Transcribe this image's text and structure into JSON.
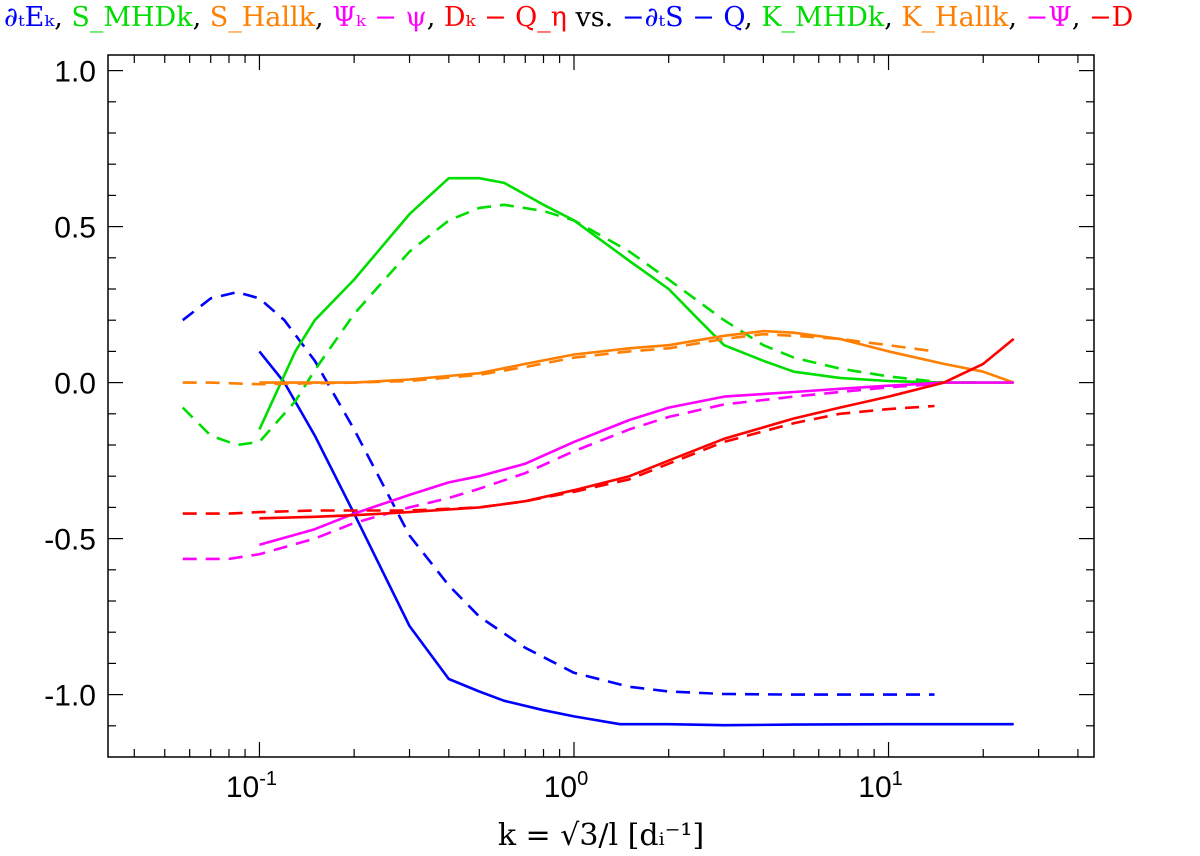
{
  "chart_data": {
    "type": "line",
    "title_segments": [
      {
        "text": "∂ₜEₖ",
        "color": "#0000ff"
      },
      {
        "text": ", ",
        "color": "#000000"
      },
      {
        "text": "S_MHDk",
        "color": "#00dd00"
      },
      {
        "text": ", ",
        "color": "#000000"
      },
      {
        "text": "S_Hallk",
        "color": "#ff7f00"
      },
      {
        "text": ", ",
        "color": "#000000"
      },
      {
        "text": "Ψₖ − ψ",
        "color": "#ff00ff"
      },
      {
        "text": ", ",
        "color": "#000000"
      },
      {
        "text": "Dₖ − Q_η",
        "color": "#ff0000"
      },
      {
        "text": " vs. ",
        "color": "#000000"
      },
      {
        "text": "−∂ₜS − Q",
        "color": "#0000ff"
      },
      {
        "text": ", ",
        "color": "#000000"
      },
      {
        "text": "K_MHDk",
        "color": "#00dd00"
      },
      {
        "text": ", ",
        "color": "#000000"
      },
      {
        "text": "K_Hallk",
        "color": "#ff7f00"
      },
      {
        "text": ", ",
        "color": "#000000"
      },
      {
        "text": "−Ψ",
        "color": "#ff00ff"
      },
      {
        "text": ", ",
        "color": "#000000"
      },
      {
        "text": "−D",
        "color": "#ff0000"
      }
    ],
    "xlabel": "k = √3/l [dᵢ⁻¹]",
    "xscale": "log",
    "xlim": [
      0.033,
      45
    ],
    "ylim": [
      -1.2,
      1.05
    ],
    "yticks": [
      1.0,
      0.5,
      0.0,
      -0.5,
      -1.0
    ],
    "ytick_labels": [
      "1.0",
      "0.5",
      "0.0",
      "-0.5",
      "-1.0"
    ],
    "xticks": [
      0.1,
      1,
      10
    ],
    "xtick_labels": [
      {
        "base": "10",
        "exp": "-1"
      },
      {
        "base": "10",
        "exp": "0"
      },
      {
        "base": "10",
        "exp": "1"
      }
    ],
    "series": [
      {
        "name": "∂tEk",
        "color": "#0000ff",
        "style": "solid",
        "x": [
          0.1,
          0.12,
          0.15,
          0.2,
          0.3,
          0.4,
          0.5,
          0.6,
          0.8,
          1.0,
          1.4,
          2,
          3,
          5,
          10,
          25
        ],
        "y": [
          0.1,
          0.0,
          -0.17,
          -0.42,
          -0.78,
          -0.95,
          -0.99,
          -1.02,
          -1.05,
          -1.07,
          -1.095,
          -1.095,
          -1.098,
          -1.096,
          -1.095,
          -1.095
        ]
      },
      {
        "name": "-∂tS - Q",
        "color": "#0000ff",
        "style": "dashed",
        "x": [
          0.057,
          0.07,
          0.085,
          0.1,
          0.12,
          0.15,
          0.2,
          0.3,
          0.4,
          0.5,
          0.7,
          1.0,
          1.5,
          2,
          3,
          5,
          10,
          14
        ],
        "y": [
          0.2,
          0.27,
          0.29,
          0.27,
          0.2,
          0.07,
          -0.15,
          -0.49,
          -0.65,
          -0.75,
          -0.85,
          -0.93,
          -0.975,
          -0.99,
          -0.998,
          -1.0,
          -1.0,
          -1.0
        ]
      },
      {
        "name": "S_MHDk",
        "color": "#00dd00",
        "style": "solid",
        "x": [
          0.1,
          0.13,
          0.15,
          0.2,
          0.3,
          0.4,
          0.5,
          0.6,
          0.8,
          1.0,
          1.5,
          2,
          2.5,
          3,
          4,
          5,
          7,
          10,
          15,
          25
        ],
        "y": [
          -0.15,
          0.1,
          0.2,
          0.33,
          0.54,
          0.655,
          0.655,
          0.64,
          0.57,
          0.52,
          0.39,
          0.3,
          0.2,
          0.12,
          0.07,
          0.035,
          0.015,
          0.005,
          0.0,
          0.0
        ]
      },
      {
        "name": "K_MHDk",
        "color": "#00dd00",
        "style": "dashed",
        "x": [
          0.057,
          0.07,
          0.085,
          0.1,
          0.13,
          0.15,
          0.2,
          0.3,
          0.4,
          0.5,
          0.6,
          0.8,
          1.0,
          1.5,
          2,
          3,
          4,
          5,
          7,
          10,
          15,
          20
        ],
        "y": [
          -0.08,
          -0.17,
          -0.2,
          -0.19,
          -0.06,
          0.04,
          0.22,
          0.42,
          0.52,
          0.56,
          0.57,
          0.55,
          0.52,
          0.42,
          0.33,
          0.2,
          0.12,
          0.08,
          0.045,
          0.02,
          0.0,
          0.0
        ]
      },
      {
        "name": "S_Hallk",
        "color": "#ff7f00",
        "style": "solid",
        "x": [
          0.1,
          0.2,
          0.3,
          0.5,
          0.7,
          1.0,
          1.5,
          2,
          3,
          4,
          5,
          7,
          10,
          15,
          20,
          25
        ],
        "y": [
          0.0,
          0.0,
          0.01,
          0.03,
          0.06,
          0.09,
          0.11,
          0.12,
          0.15,
          0.165,
          0.16,
          0.14,
          0.1,
          0.06,
          0.035,
          0.0
        ]
      },
      {
        "name": "K_Hallk",
        "color": "#ff7f00",
        "style": "dashed",
        "x": [
          0.057,
          0.07,
          0.1,
          0.2,
          0.3,
          0.5,
          0.7,
          1.0,
          1.5,
          2,
          3,
          4,
          5,
          7,
          10,
          14
        ],
        "y": [
          0.0,
          0.0,
          -0.005,
          0.0,
          0.005,
          0.025,
          0.05,
          0.08,
          0.1,
          0.11,
          0.14,
          0.155,
          0.15,
          0.14,
          0.12,
          0.1
        ]
      },
      {
        "name": "Ψk - ψ",
        "color": "#ff00ff",
        "style": "solid",
        "x": [
          0.1,
          0.15,
          0.2,
          0.3,
          0.4,
          0.5,
          0.7,
          1.0,
          1.5,
          2,
          3,
          5,
          7,
          10,
          15,
          25
        ],
        "y": [
          -0.52,
          -0.47,
          -0.42,
          -0.36,
          -0.32,
          -0.3,
          -0.26,
          -0.19,
          -0.12,
          -0.08,
          -0.045,
          -0.03,
          -0.02,
          -0.01,
          0.0,
          0.0
        ]
      },
      {
        "name": "-Ψ",
        "color": "#ff00ff",
        "style": "dashed",
        "x": [
          0.057,
          0.08,
          0.1,
          0.15,
          0.2,
          0.3,
          0.4,
          0.5,
          0.7,
          1.0,
          1.5,
          2,
          3,
          5,
          7,
          10,
          14
        ],
        "y": [
          -0.565,
          -0.565,
          -0.55,
          -0.5,
          -0.45,
          -0.4,
          -0.37,
          -0.34,
          -0.29,
          -0.22,
          -0.15,
          -0.11,
          -0.07,
          -0.045,
          -0.03,
          -0.015,
          -0.005
        ]
      },
      {
        "name": "Dk - Qη",
        "color": "#ff0000",
        "style": "solid",
        "x": [
          0.1,
          0.15,
          0.2,
          0.3,
          0.5,
          0.7,
          1.0,
          1.5,
          2,
          3,
          5,
          7,
          10,
          15,
          20,
          25
        ],
        "y": [
          -0.435,
          -0.43,
          -0.425,
          -0.415,
          -0.4,
          -0.38,
          -0.345,
          -0.3,
          -0.25,
          -0.18,
          -0.115,
          -0.08,
          -0.045,
          0.0,
          0.06,
          0.14
        ]
      },
      {
        "name": "-D",
        "color": "#ff0000",
        "style": "dashed",
        "x": [
          0.057,
          0.08,
          0.1,
          0.15,
          0.2,
          0.3,
          0.5,
          0.7,
          1.0,
          1.5,
          2,
          3,
          5,
          7,
          10,
          14
        ],
        "y": [
          -0.42,
          -0.42,
          -0.415,
          -0.41,
          -0.41,
          -0.41,
          -0.4,
          -0.38,
          -0.35,
          -0.31,
          -0.26,
          -0.19,
          -0.13,
          -0.1,
          -0.085,
          -0.075
        ]
      }
    ]
  }
}
